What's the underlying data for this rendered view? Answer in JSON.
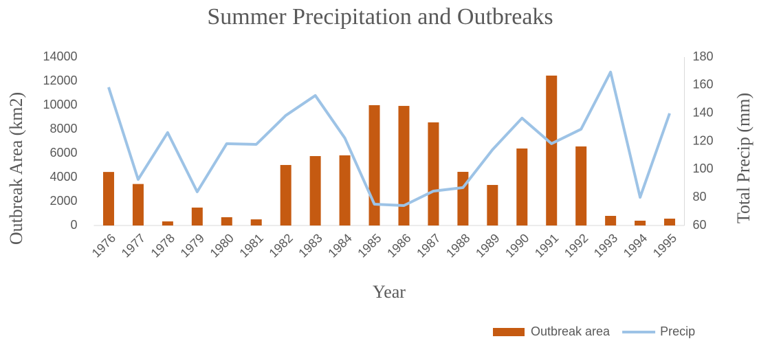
{
  "chart_data": {
    "type": "bar",
    "title": "Summer Precipitation and Outbreaks",
    "xlabel": "Year",
    "ylabel": "Outbreak Area (km2)",
    "y2label": "Total Precip (mm)",
    "categories": [
      "1976",
      "1977",
      "1978",
      "1979",
      "1980",
      "1981",
      "1982",
      "1983",
      "1984",
      "1985",
      "1986",
      "1987",
      "1988",
      "1989",
      "1990",
      "1991",
      "1992",
      "1993",
      "1994",
      "1995"
    ],
    "series": [
      {
        "name": "Outbreak area",
        "type": "bar",
        "color": "#c55a11",
        "values": [
          4450,
          3450,
          340,
          1490,
          690,
          510,
          5030,
          5770,
          5830,
          10000,
          9940,
          8570,
          4460,
          3370,
          6400,
          12460,
          6570,
          800,
          400,
          570
        ]
      },
      {
        "name": "Precip",
        "type": "line",
        "axis": "y2",
        "color": "#9dc3e6",
        "values": [
          158.5,
          92.8,
          126.2,
          84,
          118.3,
          117.8,
          138.4,
          152.6,
          122.3,
          75.2,
          74.2,
          84.5,
          87,
          114,
          136.5,
          118.3,
          128.6,
          169.3,
          80.1,
          139.9
        ]
      }
    ],
    "ylim": [
      0,
      14000
    ],
    "yticks": [
      0,
      2000,
      4000,
      6000,
      8000,
      10000,
      12000,
      14000
    ],
    "y2lim": [
      60,
      180
    ],
    "y2ticks": [
      60,
      80,
      100,
      120,
      140,
      160,
      180
    ],
    "legend": "bottom-right"
  }
}
